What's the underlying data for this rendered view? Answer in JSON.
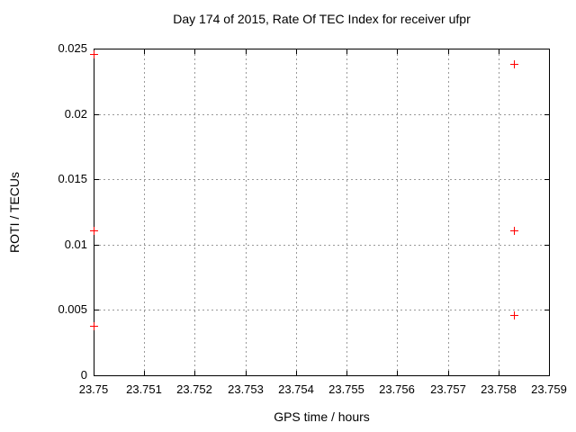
{
  "chart_data": {
    "type": "scatter",
    "title": "Day 174 of 2015, Rate Of TEC Index for receiver ufpr",
    "xlabel": "GPS time / hours",
    "ylabel": "ROTI / TECUs",
    "xlim": [
      23.75,
      23.759
    ],
    "ylim": [
      0,
      0.025
    ],
    "grid": true,
    "legend": "none",
    "marker": "plus",
    "marker_color": "#ff0000",
    "grid_color": "#9a9a9a",
    "axis_color": "#000000",
    "background_color": "#ffffff",
    "xticks": [
      {
        "v": 23.75,
        "label": "23.75"
      },
      {
        "v": 23.751,
        "label": "23.751"
      },
      {
        "v": 23.752,
        "label": "23.752"
      },
      {
        "v": 23.753,
        "label": "23.753"
      },
      {
        "v": 23.754,
        "label": "23.754"
      },
      {
        "v": 23.755,
        "label": "23.755"
      },
      {
        "v": 23.756,
        "label": "23.756"
      },
      {
        "v": 23.757,
        "label": "23.757"
      },
      {
        "v": 23.758,
        "label": "23.758"
      },
      {
        "v": 23.759,
        "label": "23.759"
      }
    ],
    "yticks": [
      {
        "v": 0,
        "label": "0"
      },
      {
        "v": 0.005,
        "label": "0.005"
      },
      {
        "v": 0.01,
        "label": "0.01"
      },
      {
        "v": 0.015,
        "label": "0.015"
      },
      {
        "v": 0.02,
        "label": "0.02"
      },
      {
        "v": 0.025,
        "label": "0.025"
      }
    ],
    "series": [
      {
        "name": "ROTI",
        "points": [
          [
            23.75,
            0.0246
          ],
          [
            23.75,
            0.0111
          ],
          [
            23.75,
            0.0038
          ],
          [
            23.7583,
            0.0238
          ],
          [
            23.7583,
            0.0111
          ],
          [
            23.7583,
            0.0046
          ]
        ]
      }
    ]
  }
}
